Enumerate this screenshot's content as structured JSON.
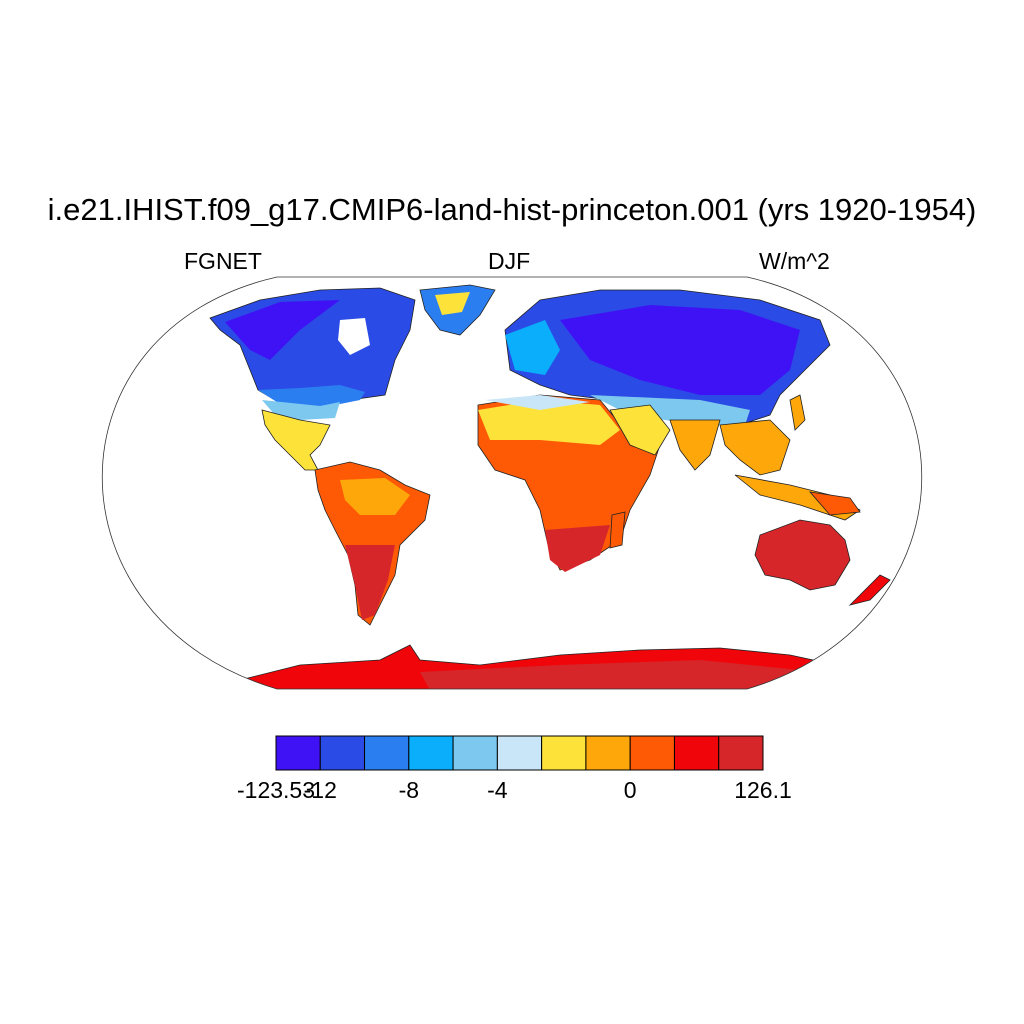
{
  "title": "i.e21.IHIST.f09_g17.CMIP6-land-hist-princeton.001 (yrs 1920-1954)",
  "variable": "FGNET",
  "season": "DJF",
  "units": "W/m^2",
  "colorbar": {
    "colors": [
      "#3f12f5",
      "#2b4be6",
      "#2b7ef0",
      "#0aaefa",
      "#7cc8ef",
      "#c8e6f7",
      "#fde23a",
      "#fda70a",
      "#fe5a06",
      "#f0060a",
      "#d6262a"
    ],
    "tick_labels": [
      {
        "label": "-123.53",
        "boundary": 0
      },
      {
        "label": "-12",
        "boundary": 1
      },
      {
        "label": "-8",
        "boundary": 3
      },
      {
        "label": "-4",
        "boundary": 5
      },
      {
        "label": "0",
        "boundary": 8
      },
      {
        "label": "126.1",
        "boundary": 11
      }
    ]
  },
  "map": {
    "projection": "Robinson",
    "field_pattern": "Strongly negative net ground heat flux (blue) over northern-hemisphere continents in DJF; positive (orange/red) over southern-hemisphere continents and Antarctica; yellow/light blue transition across ~20-35N."
  }
}
